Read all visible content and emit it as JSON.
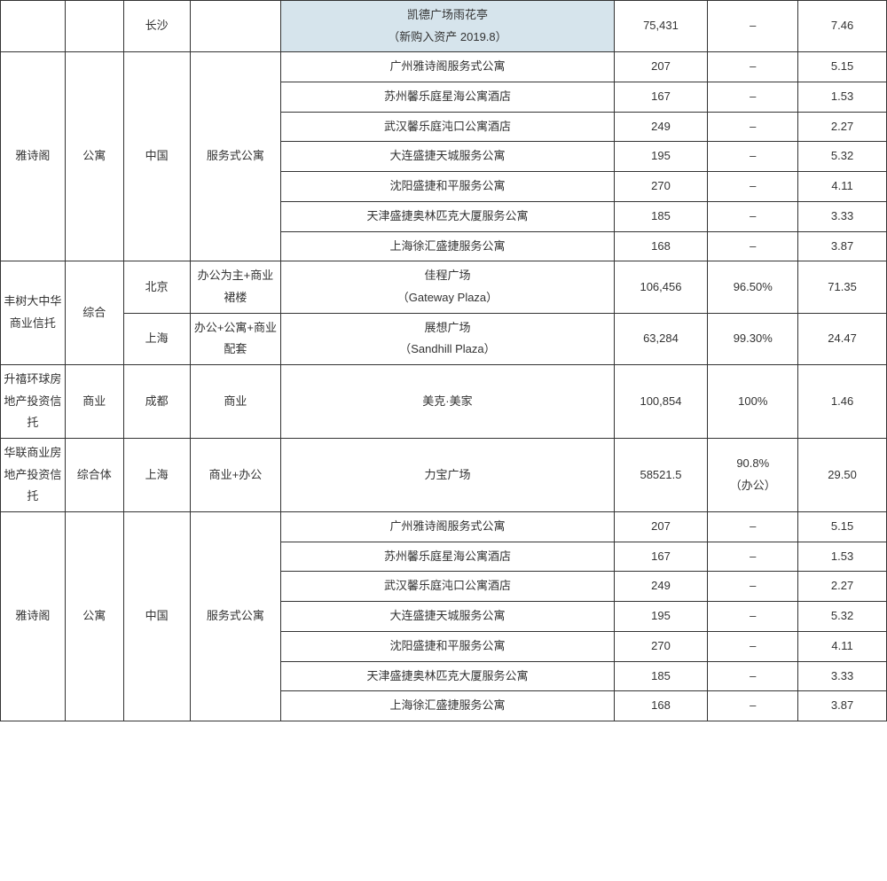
{
  "table": {
    "columns": [
      "c0",
      "c1",
      "c2",
      "c3",
      "c4",
      "c5",
      "c6",
      "c7"
    ],
    "background_color": "#ffffff",
    "border_color": "#333333",
    "highlight_color": "#d6e4ec",
    "font_size_pt": 10,
    "grid": [
      [
        {
          "rs": 1,
          "cs": 1,
          "text": ""
        },
        {
          "rs": 1,
          "cs": 1,
          "text": ""
        },
        {
          "rs": 1,
          "cs": 1,
          "text": "长沙"
        },
        {
          "rs": 1,
          "cs": 1,
          "text": ""
        },
        {
          "rs": 1,
          "cs": 1,
          "lines": [
            "凯德广场雨花亭",
            "（新购入资产 2019.8）"
          ],
          "highlight": true
        },
        {
          "rs": 1,
          "cs": 1,
          "text": "75,431"
        },
        {
          "rs": 1,
          "cs": 1,
          "text": "–"
        },
        {
          "rs": 1,
          "cs": 1,
          "text": "7.46"
        }
      ],
      [
        {
          "rs": 7,
          "cs": 1,
          "text": "雅诗阁"
        },
        {
          "rs": 7,
          "cs": 1,
          "text": "公寓"
        },
        {
          "rs": 7,
          "cs": 1,
          "text": "中国"
        },
        {
          "rs": 7,
          "cs": 1,
          "text": "服务式公寓"
        },
        {
          "rs": 1,
          "cs": 1,
          "text": "广州雅诗阁服务式公寓"
        },
        {
          "rs": 1,
          "cs": 1,
          "text": "207"
        },
        {
          "rs": 1,
          "cs": 1,
          "text": "–"
        },
        {
          "rs": 1,
          "cs": 1,
          "text": "5.15"
        }
      ],
      [
        {
          "rs": 1,
          "cs": 1,
          "text": "苏州馨乐庭星海公寓酒店"
        },
        {
          "rs": 1,
          "cs": 1,
          "text": "167"
        },
        {
          "rs": 1,
          "cs": 1,
          "text": "–"
        },
        {
          "rs": 1,
          "cs": 1,
          "text": "1.53"
        }
      ],
      [
        {
          "rs": 1,
          "cs": 1,
          "text": "武汉馨乐庭沌口公寓酒店"
        },
        {
          "rs": 1,
          "cs": 1,
          "text": "249"
        },
        {
          "rs": 1,
          "cs": 1,
          "text": "–"
        },
        {
          "rs": 1,
          "cs": 1,
          "text": "2.27"
        }
      ],
      [
        {
          "rs": 1,
          "cs": 1,
          "text": "大连盛捷天城服务公寓"
        },
        {
          "rs": 1,
          "cs": 1,
          "text": "195"
        },
        {
          "rs": 1,
          "cs": 1,
          "text": "–"
        },
        {
          "rs": 1,
          "cs": 1,
          "text": "5.32"
        }
      ],
      [
        {
          "rs": 1,
          "cs": 1,
          "text": "沈阳盛捷和平服务公寓"
        },
        {
          "rs": 1,
          "cs": 1,
          "text": "270"
        },
        {
          "rs": 1,
          "cs": 1,
          "text": "–"
        },
        {
          "rs": 1,
          "cs": 1,
          "text": "4.11"
        }
      ],
      [
        {
          "rs": 1,
          "cs": 1,
          "text": "天津盛捷奥林匹克大厦服务公寓"
        },
        {
          "rs": 1,
          "cs": 1,
          "text": "185"
        },
        {
          "rs": 1,
          "cs": 1,
          "text": "–"
        },
        {
          "rs": 1,
          "cs": 1,
          "text": "3.33"
        }
      ],
      [
        {
          "rs": 1,
          "cs": 1,
          "text": "上海徐汇盛捷服务公寓"
        },
        {
          "rs": 1,
          "cs": 1,
          "text": "168"
        },
        {
          "rs": 1,
          "cs": 1,
          "text": "–"
        },
        {
          "rs": 1,
          "cs": 1,
          "text": "3.87"
        }
      ],
      [
        {
          "rs": 2,
          "cs": 1,
          "text": "丰树大中华商业信托"
        },
        {
          "rs": 2,
          "cs": 1,
          "text": "综合"
        },
        {
          "rs": 1,
          "cs": 1,
          "text": "北京"
        },
        {
          "rs": 1,
          "cs": 1,
          "text": "办公为主+商业裙楼"
        },
        {
          "rs": 1,
          "cs": 1,
          "lines": [
            "佳程广场",
            "（Gateway Plaza）"
          ]
        },
        {
          "rs": 1,
          "cs": 1,
          "text": "106,456"
        },
        {
          "rs": 1,
          "cs": 1,
          "text": "96.50%"
        },
        {
          "rs": 1,
          "cs": 1,
          "text": "71.35"
        }
      ],
      [
        {
          "rs": 1,
          "cs": 1,
          "text": "上海"
        },
        {
          "rs": 1,
          "cs": 1,
          "text": "办公+公寓+商业配套"
        },
        {
          "rs": 1,
          "cs": 1,
          "lines": [
            "展想广场",
            "（Sandhill Plaza）"
          ]
        },
        {
          "rs": 1,
          "cs": 1,
          "text": "63,284"
        },
        {
          "rs": 1,
          "cs": 1,
          "text": "99.30%"
        },
        {
          "rs": 1,
          "cs": 1,
          "text": "24.47"
        }
      ],
      [
        {
          "rs": 1,
          "cs": 1,
          "text": "升禧环球房地产投资信托"
        },
        {
          "rs": 1,
          "cs": 1,
          "text": "商业"
        },
        {
          "rs": 1,
          "cs": 1,
          "text": "成都"
        },
        {
          "rs": 1,
          "cs": 1,
          "text": "商业"
        },
        {
          "rs": 1,
          "cs": 1,
          "text": "美克·美家"
        },
        {
          "rs": 1,
          "cs": 1,
          "text": "100,854"
        },
        {
          "rs": 1,
          "cs": 1,
          "text": "100%"
        },
        {
          "rs": 1,
          "cs": 1,
          "text": "1.46"
        }
      ],
      [
        {
          "rs": 1,
          "cs": 1,
          "text": "华联商业房地产投资信托"
        },
        {
          "rs": 1,
          "cs": 1,
          "text": "综合体"
        },
        {
          "rs": 1,
          "cs": 1,
          "text": "上海"
        },
        {
          "rs": 1,
          "cs": 1,
          "text": "商业+办公"
        },
        {
          "rs": 1,
          "cs": 1,
          "text": "力宝广场"
        },
        {
          "rs": 1,
          "cs": 1,
          "text": "58521.5"
        },
        {
          "rs": 1,
          "cs": 1,
          "lines": [
            "90.8%",
            "（办公）"
          ]
        },
        {
          "rs": 1,
          "cs": 1,
          "text": "29.50"
        }
      ],
      [
        {
          "rs": 7,
          "cs": 1,
          "text": "雅诗阁"
        },
        {
          "rs": 7,
          "cs": 1,
          "text": "公寓"
        },
        {
          "rs": 7,
          "cs": 1,
          "text": "中国"
        },
        {
          "rs": 7,
          "cs": 1,
          "text": "服务式公寓"
        },
        {
          "rs": 1,
          "cs": 1,
          "text": "广州雅诗阁服务式公寓"
        },
        {
          "rs": 1,
          "cs": 1,
          "text": "207"
        },
        {
          "rs": 1,
          "cs": 1,
          "text": "–"
        },
        {
          "rs": 1,
          "cs": 1,
          "text": "5.15"
        }
      ],
      [
        {
          "rs": 1,
          "cs": 1,
          "text": "苏州馨乐庭星海公寓酒店"
        },
        {
          "rs": 1,
          "cs": 1,
          "text": "167"
        },
        {
          "rs": 1,
          "cs": 1,
          "text": "–"
        },
        {
          "rs": 1,
          "cs": 1,
          "text": "1.53"
        }
      ],
      [
        {
          "rs": 1,
          "cs": 1,
          "text": "武汉馨乐庭沌口公寓酒店"
        },
        {
          "rs": 1,
          "cs": 1,
          "text": "249"
        },
        {
          "rs": 1,
          "cs": 1,
          "text": "–"
        },
        {
          "rs": 1,
          "cs": 1,
          "text": "2.27"
        }
      ],
      [
        {
          "rs": 1,
          "cs": 1,
          "text": "大连盛捷天城服务公寓"
        },
        {
          "rs": 1,
          "cs": 1,
          "text": "195"
        },
        {
          "rs": 1,
          "cs": 1,
          "text": "–"
        },
        {
          "rs": 1,
          "cs": 1,
          "text": "5.32"
        }
      ],
      [
        {
          "rs": 1,
          "cs": 1,
          "text": "沈阳盛捷和平服务公寓"
        },
        {
          "rs": 1,
          "cs": 1,
          "text": "270"
        },
        {
          "rs": 1,
          "cs": 1,
          "text": "–"
        },
        {
          "rs": 1,
          "cs": 1,
          "text": "4.11"
        }
      ],
      [
        {
          "rs": 1,
          "cs": 1,
          "text": "天津盛捷奥林匹克大厦服务公寓"
        },
        {
          "rs": 1,
          "cs": 1,
          "text": "185"
        },
        {
          "rs": 1,
          "cs": 1,
          "text": "–"
        },
        {
          "rs": 1,
          "cs": 1,
          "text": "3.33"
        }
      ],
      [
        {
          "rs": 1,
          "cs": 1,
          "text": "上海徐汇盛捷服务公寓"
        },
        {
          "rs": 1,
          "cs": 1,
          "text": "168"
        },
        {
          "rs": 1,
          "cs": 1,
          "text": "–"
        },
        {
          "rs": 1,
          "cs": 1,
          "text": "3.87"
        }
      ]
    ]
  }
}
